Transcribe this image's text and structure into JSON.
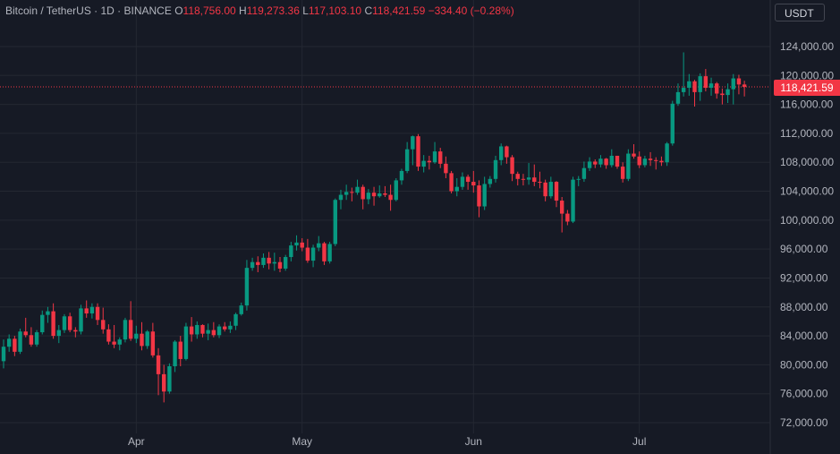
{
  "header": {
    "symbol": "Bitcoin / TetherUS · 1D · BINANCE",
    "open_label": "O",
    "open": "118,756.00",
    "high_label": "H",
    "high": "119,273.36",
    "low_label": "L",
    "low": "117,103.10",
    "close_label": "C",
    "close": "118,421.59",
    "change": "−334.40 (−0.28%)"
  },
  "currency": "USDT",
  "last_price_label": "118,421.59",
  "colors": {
    "up": "#089981",
    "down": "#f23645",
    "background": "#161a25",
    "grid": "#242832"
  },
  "chart_data": {
    "type": "candlestick",
    "ylim": [
      71000,
      126000
    ],
    "y_ticks": [
      "72,000.00",
      "76,000.00",
      "80,000.00",
      "84,000.00",
      "88,000.00",
      "92,000.00",
      "96,000.00",
      "100,000.00",
      "104,000.00",
      "108,000.00",
      "112,000.00",
      "116,000.00",
      "120,000.00",
      "124,000.00"
    ],
    "x_ticks": [
      {
        "label": "Apr",
        "index": 24
      },
      {
        "label": "May",
        "index": 54
      },
      {
        "label": "Jun",
        "index": 85
      },
      {
        "label": "Jul",
        "index": 115
      }
    ],
    "last_price": 118421.59,
    "candles": [
      [
        80500,
        83500,
        79500,
        82500
      ],
      [
        82500,
        84200,
        81800,
        83600
      ],
      [
        83600,
        84000,
        81200,
        81800
      ],
      [
        81800,
        85000,
        81500,
        84600
      ],
      [
        84600,
        86500,
        83800,
        84100
      ],
      [
        84100,
        85200,
        82500,
        82800
      ],
      [
        82800,
        84800,
        82500,
        84500
      ],
      [
        84500,
        87500,
        84200,
        86900
      ],
      [
        86900,
        88000,
        85800,
        87400
      ],
      [
        87400,
        88500,
        83600,
        84000
      ],
      [
        84000,
        85500,
        83000,
        84800
      ],
      [
        84800,
        87000,
        84400,
        86700
      ],
      [
        86700,
        87200,
        84500,
        84800
      ],
      [
        84800,
        85200,
        83800,
        84600
      ],
      [
        84600,
        88300,
        84200,
        87800
      ],
      [
        87800,
        88900,
        86500,
        87100
      ],
      [
        87100,
        88500,
        86400,
        88000
      ],
      [
        88000,
        88500,
        85500,
        86200
      ],
      [
        86200,
        87900,
        84300,
        84900
      ],
      [
        84900,
        85600,
        82800,
        83200
      ],
      [
        83200,
        85500,
        82300,
        82800
      ],
      [
        82800,
        83800,
        82000,
        83500
      ],
      [
        83500,
        86500,
        83100,
        86200
      ],
      [
        86200,
        88800,
        83300,
        83600
      ],
      [
        83600,
        85400,
        83000,
        84300
      ],
      [
        84300,
        85900,
        82000,
        82600
      ],
      [
        82600,
        84800,
        82200,
        84600
      ],
      [
        84600,
        85800,
        81000,
        81300
      ],
      [
        81300,
        82300,
        75800,
        78700
      ],
      [
        78700,
        80000,
        74800,
        76300
      ],
      [
        76300,
        80200,
        76000,
        79800
      ],
      [
        79800,
        83400,
        79000,
        83200
      ],
      [
        83200,
        84000,
        79800,
        80800
      ],
      [
        80800,
        85800,
        80600,
        85300
      ],
      [
        85300,
        86600,
        83200,
        84200
      ],
      [
        84200,
        86000,
        83600,
        85500
      ],
      [
        85500,
        85600,
        83800,
        84300
      ],
      [
        84300,
        85700,
        83400,
        84800
      ],
      [
        84800,
        85900,
        83800,
        84100
      ],
      [
        84100,
        85600,
        83700,
        85300
      ],
      [
        85300,
        85900,
        84600,
        84900
      ],
      [
        84900,
        86000,
        84400,
        85400
      ],
      [
        85400,
        87200,
        84800,
        87000
      ],
      [
        87000,
        88600,
        86800,
        88200
      ],
      [
        88200,
        94500,
        87500,
        93400
      ],
      [
        93400,
        94800,
        93000,
        94200
      ],
      [
        94200,
        95000,
        92800,
        93800
      ],
      [
        93800,
        95400,
        93400,
        94800
      ],
      [
        94800,
        95600,
        93200,
        94000
      ],
      [
        94000,
        95500,
        93000,
        94200
      ],
      [
        94200,
        94900,
        92800,
        93300
      ],
      [
        93300,
        95200,
        93000,
        94900
      ],
      [
        94900,
        97000,
        94300,
        96500
      ],
      [
        96500,
        97900,
        95800,
        96900
      ],
      [
        96900,
        97500,
        95700,
        96200
      ],
      [
        96200,
        97400,
        94100,
        94400
      ],
      [
        94400,
        96600,
        93500,
        96200
      ],
      [
        96200,
        97800,
        95700,
        96800
      ],
      [
        96800,
        97000,
        93800,
        94300
      ],
      [
        94300,
        97000,
        94000,
        96700
      ],
      [
        96700,
        103000,
        96400,
        102800
      ],
      [
        102800,
        104200,
        101500,
        103500
      ],
      [
        103500,
        104900,
        102800,
        103900
      ],
      [
        103900,
        104500,
        102600,
        103800
      ],
      [
        103800,
        105600,
        103500,
        104600
      ],
      [
        104600,
        104900,
        101500,
        102900
      ],
      [
        102900,
        104300,
        102200,
        103800
      ],
      [
        103800,
        104600,
        102000,
        103300
      ],
      [
        103300,
        104800,
        103100,
        103700
      ],
      [
        103700,
        104700,
        103200,
        103500
      ],
      [
        103500,
        104900,
        101300,
        102800
      ],
      [
        102800,
        105800,
        102600,
        105500
      ],
      [
        105500,
        107100,
        104900,
        106800
      ],
      [
        106800,
        110800,
        106500,
        109800
      ],
      [
        109800,
        111700,
        107600,
        111600
      ],
      [
        111600,
        111900,
        106800,
        107400
      ],
      [
        107400,
        109000,
        106600,
        108200
      ],
      [
        108200,
        108900,
        107000,
        108000
      ],
      [
        108000,
        110800,
        107800,
        109500
      ],
      [
        109500,
        110000,
        107200,
        107800
      ],
      [
        107800,
        108800,
        105800,
        106500
      ],
      [
        106500,
        106800,
        103700,
        104000
      ],
      [
        104000,
        105800,
        103300,
        104600
      ],
      [
        104600,
        106600,
        104200,
        106000
      ],
      [
        106000,
        106300,
        104200,
        105300
      ],
      [
        105300,
        106800,
        103800,
        104800
      ],
      [
        104800,
        105500,
        100400,
        101900
      ],
      [
        101900,
        106000,
        101400,
        105000
      ],
      [
        105000,
        106100,
        104500,
        105700
      ],
      [
        105700,
        108900,
        105200,
        108300
      ],
      [
        108300,
        110600,
        107600,
        110200
      ],
      [
        110200,
        110300,
        107800,
        108700
      ],
      [
        108700,
        109000,
        105400,
        106400
      ],
      [
        106400,
        106700,
        104800,
        105700
      ],
      [
        105700,
        106400,
        104800,
        105600
      ],
      [
        105600,
        107900,
        104900,
        105900
      ],
      [
        105900,
        107700,
        104700,
        105300
      ],
      [
        105300,
        106700,
        104400,
        105200
      ],
      [
        105200,
        105600,
        102600,
        103300
      ],
      [
        103300,
        106000,
        103000,
        105300
      ],
      [
        105300,
        105400,
        101800,
        102700
      ],
      [
        102700,
        103200,
        98300,
        100900
      ],
      [
        100900,
        101400,
        99300,
        99800
      ],
      [
        99800,
        106000,
        99600,
        105600
      ],
      [
        105600,
        106100,
        104700,
        105700
      ],
      [
        105700,
        108100,
        105300,
        107200
      ],
      [
        107200,
        108700,
        106800,
        108100
      ],
      [
        108100,
        108400,
        107200,
        107700
      ],
      [
        107700,
        109000,
        107300,
        108500
      ],
      [
        108500,
        108600,
        107100,
        107600
      ],
      [
        107600,
        109800,
        107300,
        108900
      ],
      [
        108900,
        108900,
        107100,
        107400
      ],
      [
        107400,
        108000,
        105200,
        105700
      ],
      [
        105700,
        109800,
        105400,
        109200
      ],
      [
        109200,
        110500,
        108500,
        108800
      ],
      [
        108800,
        109500,
        107200,
        107600
      ],
      [
        107600,
        108900,
        107300,
        108500
      ],
      [
        108500,
        109400,
        107500,
        108300
      ],
      [
        108300,
        108700,
        107000,
        108200
      ],
      [
        108200,
        108800,
        107500,
        108000
      ],
      [
        108000,
        110800,
        107500,
        110600
      ],
      [
        110600,
        116500,
        110300,
        116100
      ],
      [
        116100,
        118900,
        115800,
        117700
      ],
      [
        117700,
        123200,
        117100,
        118300
      ],
      [
        118300,
        120200,
        117200,
        119200
      ],
      [
        119200,
        119400,
        115700,
        117700
      ],
      [
        117700,
        120300,
        116500,
        119900
      ],
      [
        119900,
        120900,
        117800,
        118300
      ],
      [
        118300,
        119700,
        117200,
        118900
      ],
      [
        118900,
        119100,
        116800,
        117500
      ],
      [
        117500,
        118200,
        116000,
        117300
      ],
      [
        117300,
        118900,
        116200,
        118100
      ],
      [
        118100,
        120200,
        116000,
        119600
      ],
      [
        119600,
        120100,
        117400,
        118756
      ],
      [
        118756,
        119273.36,
        117103.1,
        118421.59
      ]
    ]
  }
}
